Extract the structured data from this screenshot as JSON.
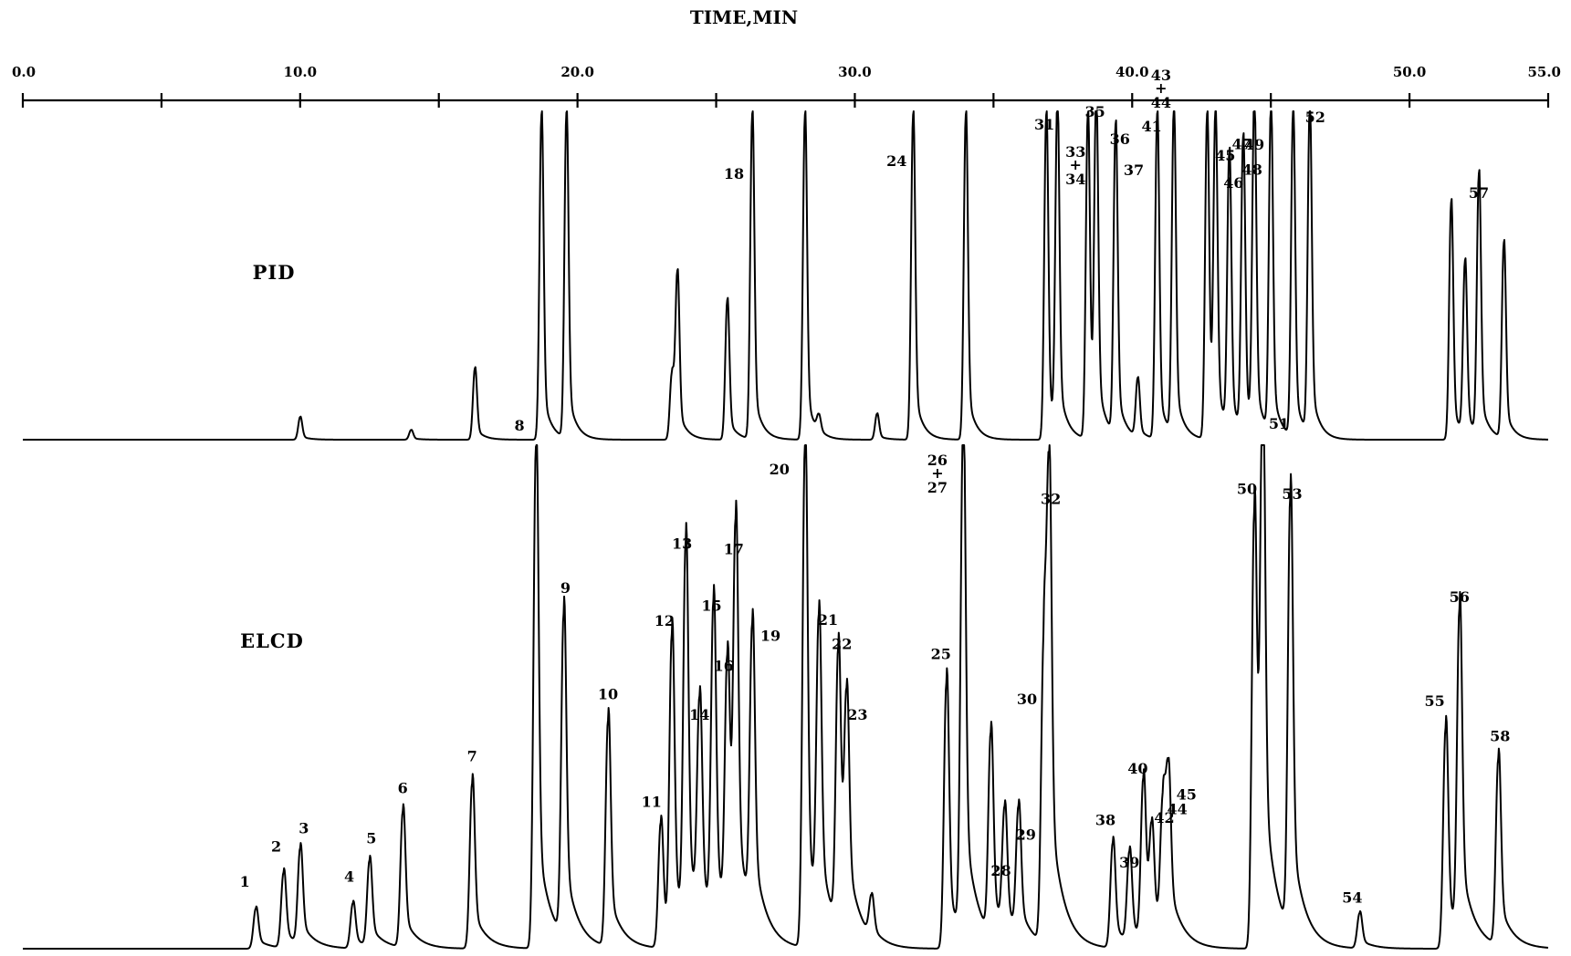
{
  "chart_data": {
    "type": "line",
    "title": "",
    "xlabel": "TIME,MIN",
    "ylabel": "",
    "xlim": [
      0,
      55
    ],
    "grid": false,
    "legend": "none",
    "ticks": [
      {
        "value": 0,
        "label": "0.0"
      },
      {
        "value": 10,
        "label": "10.0"
      },
      {
        "value": 20,
        "label": "20.0"
      },
      {
        "value": 30,
        "label": "30.0"
      },
      {
        "value": 40,
        "label": "40.0"
      },
      {
        "value": 50,
        "label": "50.0"
      },
      {
        "value": 55,
        "label": "55.0"
      }
    ],
    "minor_ticks": [
      5,
      15,
      25,
      35,
      45
    ],
    "series": [
      {
        "name": "PID",
        "peaks": [
          {
            "t": 10.0,
            "h": 0.07,
            "label": ""
          },
          {
            "t": 14.0,
            "h": 0.03,
            "label": ""
          },
          {
            "t": 16.3,
            "h": 0.22,
            "label": ""
          },
          {
            "t": 18.7,
            "h": 1.0,
            "label": ""
          },
          {
            "t": 19.6,
            "h": 1.0,
            "label": ""
          },
          {
            "t": 23.4,
            "h": 0.2,
            "label": ""
          },
          {
            "t": 23.6,
            "h": 0.5,
            "label": ""
          },
          {
            "t": 25.4,
            "h": 0.43,
            "label": ""
          },
          {
            "t": 26.3,
            "h": 1.0,
            "label": "18"
          },
          {
            "t": 28.2,
            "h": 1.0,
            "label": ""
          },
          {
            "t": 28.7,
            "h": 0.05,
            "label": ""
          },
          {
            "t": 30.8,
            "h": 0.08,
            "label": ""
          },
          {
            "t": 32.1,
            "h": 1.0,
            "label": "24"
          },
          {
            "t": 34.0,
            "h": 1.0,
            "label": ""
          },
          {
            "t": 36.9,
            "h": 1.0,
            "label": "31"
          },
          {
            "t": 37.3,
            "h": 1.0,
            "label": "33 + 34"
          },
          {
            "t": 38.4,
            "h": 1.0,
            "label": "35"
          },
          {
            "t": 38.7,
            "h": 1.0,
            "label": "36"
          },
          {
            "t": 39.4,
            "h": 0.95,
            "label": "37"
          },
          {
            "t": 40.2,
            "h": 0.18,
            "label": ""
          },
          {
            "t": 40.9,
            "h": 1.0,
            "label": "41"
          },
          {
            "t": 41.5,
            "h": 1.0,
            "label": "43 + 44"
          },
          {
            "t": 42.7,
            "h": 1.0,
            "label": "45"
          },
          {
            "t": 43.0,
            "h": 0.95,
            "label": "46"
          },
          {
            "t": 43.5,
            "h": 0.85,
            "label": "47"
          },
          {
            "t": 44.0,
            "h": 0.9,
            "label": "48"
          },
          {
            "t": 44.4,
            "h": 1.0,
            "label": "49"
          },
          {
            "t": 45.0,
            "h": 1.0,
            "label": ""
          },
          {
            "t": 45.8,
            "h": 1.0,
            "label": ""
          },
          {
            "t": 46.4,
            "h": 1.0,
            "label": "52"
          },
          {
            "t": 51.5,
            "h": 0.73,
            "label": ""
          },
          {
            "t": 52.0,
            "h": 0.53,
            "label": ""
          },
          {
            "t": 52.5,
            "h": 0.8,
            "label": "57"
          },
          {
            "t": 53.4,
            "h": 0.6,
            "label": ""
          }
        ]
      },
      {
        "name": "ELCD",
        "peaks": [
          {
            "t": 8.4,
            "h": 0.08,
            "label": "1"
          },
          {
            "t": 9.4,
            "h": 0.15,
            "label": "2"
          },
          {
            "t": 10.0,
            "h": 0.19,
            "label": "3"
          },
          {
            "t": 11.9,
            "h": 0.09,
            "label": "4"
          },
          {
            "t": 12.5,
            "h": 0.17,
            "label": "5"
          },
          {
            "t": 13.7,
            "h": 0.27,
            "label": "6"
          },
          {
            "t": 16.2,
            "h": 0.33,
            "label": "7"
          },
          {
            "t": 18.5,
            "h": 1.0,
            "label": "8"
          },
          {
            "t": 19.5,
            "h": 0.64,
            "label": "9"
          },
          {
            "t": 21.1,
            "h": 0.45,
            "label": "10"
          },
          {
            "t": 23.0,
            "h": 0.25,
            "label": "11"
          },
          {
            "t": 23.4,
            "h": 0.6,
            "label": "12"
          },
          {
            "t": 23.9,
            "h": 0.75,
            "label": "13"
          },
          {
            "t": 24.4,
            "h": 0.42,
            "label": "14"
          },
          {
            "t": 24.9,
            "h": 0.63,
            "label": "15"
          },
          {
            "t": 25.4,
            "h": 0.51,
            "label": "16"
          },
          {
            "t": 25.7,
            "h": 0.75,
            "label": "17"
          },
          {
            "t": 26.3,
            "h": 0.57,
            "label": "19"
          },
          {
            "t": 28.2,
            "h": 1.0,
            "label": "20"
          },
          {
            "t": 28.7,
            "h": 0.58,
            "label": "21"
          },
          {
            "t": 29.4,
            "h": 0.55,
            "label": "22"
          },
          {
            "t": 29.7,
            "h": 0.42,
            "label": "23"
          },
          {
            "t": 30.6,
            "h": 0.08,
            "label": ""
          },
          {
            "t": 33.3,
            "h": 0.53,
            "label": "25"
          },
          {
            "t": 33.9,
            "h": 1.0,
            "label": "26 + 27"
          },
          {
            "t": 34.9,
            "h": 0.4,
            "label": ""
          },
          {
            "t": 35.4,
            "h": 0.24,
            "label": "28"
          },
          {
            "t": 35.9,
            "h": 0.25,
            "label": "29"
          },
          {
            "t": 36.8,
            "h": 0.56,
            "label": "30"
          },
          {
            "t": 37.0,
            "h": 0.85,
            "label": "32"
          },
          {
            "t": 39.3,
            "h": 0.21,
            "label": "38"
          },
          {
            "t": 39.9,
            "h": 0.18,
            "label": "39"
          },
          {
            "t": 40.4,
            "h": 0.32,
            "label": "40"
          },
          {
            "t": 40.7,
            "h": 0.2,
            "label": "42"
          },
          {
            "t": 41.1,
            "h": 0.25,
            "label": "44"
          },
          {
            "t": 41.3,
            "h": 0.29,
            "label": "45"
          },
          {
            "t": 44.4,
            "h": 0.87,
            "label": "50"
          },
          {
            "t": 44.7,
            "h": 1.0,
            "label": "51"
          },
          {
            "t": 45.7,
            "h": 0.86,
            "label": "53"
          },
          {
            "t": 48.2,
            "h": 0.07,
            "label": "54"
          },
          {
            "t": 51.3,
            "h": 0.44,
            "label": "55"
          },
          {
            "t": 51.8,
            "h": 0.64,
            "label": "56"
          },
          {
            "t": 53.2,
            "h": 0.37,
            "label": "58"
          }
        ]
      }
    ]
  }
}
